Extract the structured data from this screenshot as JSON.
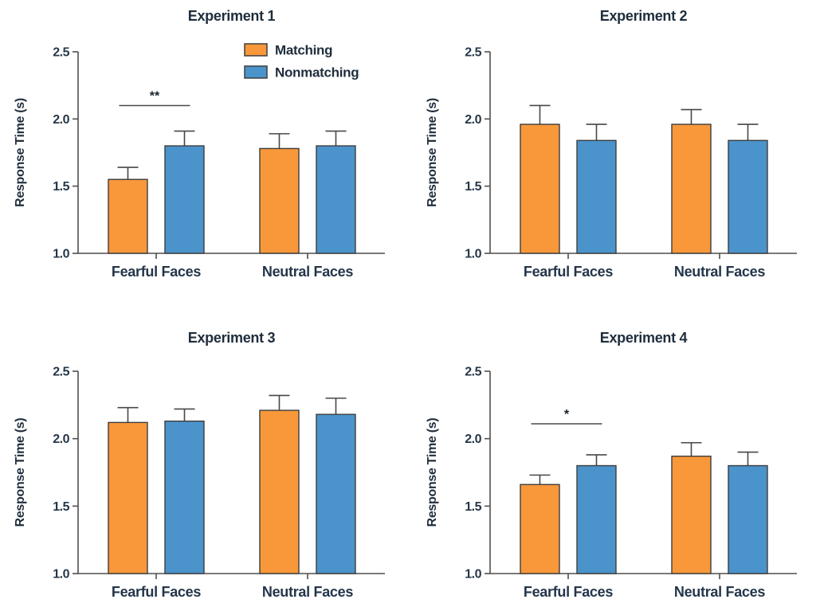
{
  "figure": {
    "background": "#ffffff",
    "accent_colors": {
      "matching": "#F8983A",
      "nonmatching": "#4B93CB",
      "bar_border": "#3d3d3d",
      "axis": "#4f4f4f",
      "text": "#1f2d3c"
    }
  },
  "chart_data": [
    {
      "type": "bar",
      "title": "Experiment 1",
      "ylabel": "Response Time (s)",
      "xlabel": "",
      "categories": [
        "Fearful Faces",
        "Neutral Faces"
      ],
      "series": [
        {
          "name": "Matching",
          "color": "#F8983A",
          "values": [
            1.55,
            1.78
          ],
          "errors_plus": [
            0.09,
            0.11
          ]
        },
        {
          "name": "Nonmatching",
          "color": "#4B93CB",
          "values": [
            1.8,
            1.8
          ],
          "errors_plus": [
            0.11,
            0.11
          ]
        }
      ],
      "ylim": [
        1.0,
        2.5
      ],
      "yticks": [
        "1.0",
        "1.5",
        "2.0",
        "2.5"
      ],
      "grid": false,
      "legend": {
        "show": true,
        "position": "top-right"
      },
      "significance": [
        {
          "category_index": 0,
          "label": "**",
          "line_y": 2.1
        }
      ]
    },
    {
      "type": "bar",
      "title": "Experiment 2",
      "ylabel": "Response Time (s)",
      "xlabel": "",
      "categories": [
        "Fearful Faces",
        "Neutral Faces"
      ],
      "series": [
        {
          "name": "Matching",
          "color": "#F8983A",
          "values": [
            1.96,
            1.96
          ],
          "errors_plus": [
            0.14,
            0.11
          ]
        },
        {
          "name": "Nonmatching",
          "color": "#4B93CB",
          "values": [
            1.84,
            1.84
          ],
          "errors_plus": [
            0.12,
            0.12
          ]
        }
      ],
      "ylim": [
        1.0,
        2.5
      ],
      "yticks": [
        "1.0",
        "1.5",
        "2.0",
        "2.5"
      ],
      "grid": false,
      "legend": {
        "show": false,
        "position": "none"
      },
      "significance": []
    },
    {
      "type": "bar",
      "title": "Experiment 3",
      "ylabel": "Response Time (s)",
      "xlabel": "",
      "categories": [
        "Fearful Faces",
        "Neutral Faces"
      ],
      "series": [
        {
          "name": "Matching",
          "color": "#F8983A",
          "values": [
            2.12,
            2.21
          ],
          "errors_plus": [
            0.11,
            0.11
          ]
        },
        {
          "name": "Nonmatching",
          "color": "#4B93CB",
          "values": [
            2.13,
            2.18
          ],
          "errors_plus": [
            0.09,
            0.12
          ]
        }
      ],
      "ylim": [
        1.0,
        2.5
      ],
      "yticks": [
        "1.0",
        "1.5",
        "2.0",
        "2.5"
      ],
      "grid": false,
      "legend": {
        "show": false,
        "position": "none"
      },
      "significance": []
    },
    {
      "type": "bar",
      "title": "Experiment 4",
      "ylabel": "Response Time (s)",
      "xlabel": "",
      "categories": [
        "Fearful Faces",
        "Neutral Faces"
      ],
      "series": [
        {
          "name": "Matching",
          "color": "#F8983A",
          "values": [
            1.66,
            1.87
          ],
          "errors_plus": [
            0.07,
            0.1
          ]
        },
        {
          "name": "Nonmatching",
          "color": "#4B93CB",
          "values": [
            1.8,
            1.8
          ],
          "errors_plus": [
            0.08,
            0.1
          ]
        }
      ],
      "ylim": [
        1.0,
        2.5
      ],
      "yticks": [
        "1.0",
        "1.5",
        "2.0",
        "2.5"
      ],
      "grid": false,
      "legend": {
        "show": false,
        "position": "none"
      },
      "significance": [
        {
          "category_index": 0,
          "label": "*",
          "line_y": 2.11
        }
      ]
    }
  ]
}
